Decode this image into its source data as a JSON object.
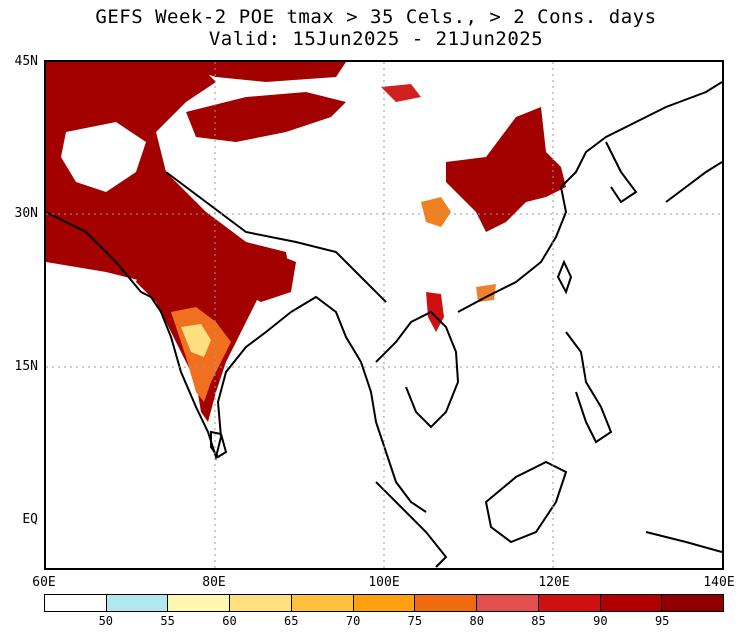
{
  "header": {
    "title_line1": "GEFS Week-2 POE tmax > 35 Cels., > 2 Cons. days",
    "title_line2": "Valid: 15Jun2025 - 21Jun2025"
  },
  "map": {
    "lat_labels": [
      "45N",
      "30N",
      "15N",
      "EQ"
    ],
    "lon_labels": [
      "60E",
      "80E",
      "100E",
      "120E",
      "140E"
    ],
    "lat_range": [
      -5,
      45
    ],
    "lon_range": [
      60,
      140
    ]
  },
  "colorbar": {
    "colors": [
      "#ffffff",
      "#b0e8f0",
      "#fff7b0",
      "#ffe080",
      "#ffc040",
      "#ffa010",
      "#f06a10",
      "#e05050",
      "#d01010",
      "#b00000",
      "#900000"
    ],
    "labels": [
      "50",
      "55",
      "60",
      "65",
      "70",
      "75",
      "80",
      "85",
      "90",
      "95"
    ]
  }
}
